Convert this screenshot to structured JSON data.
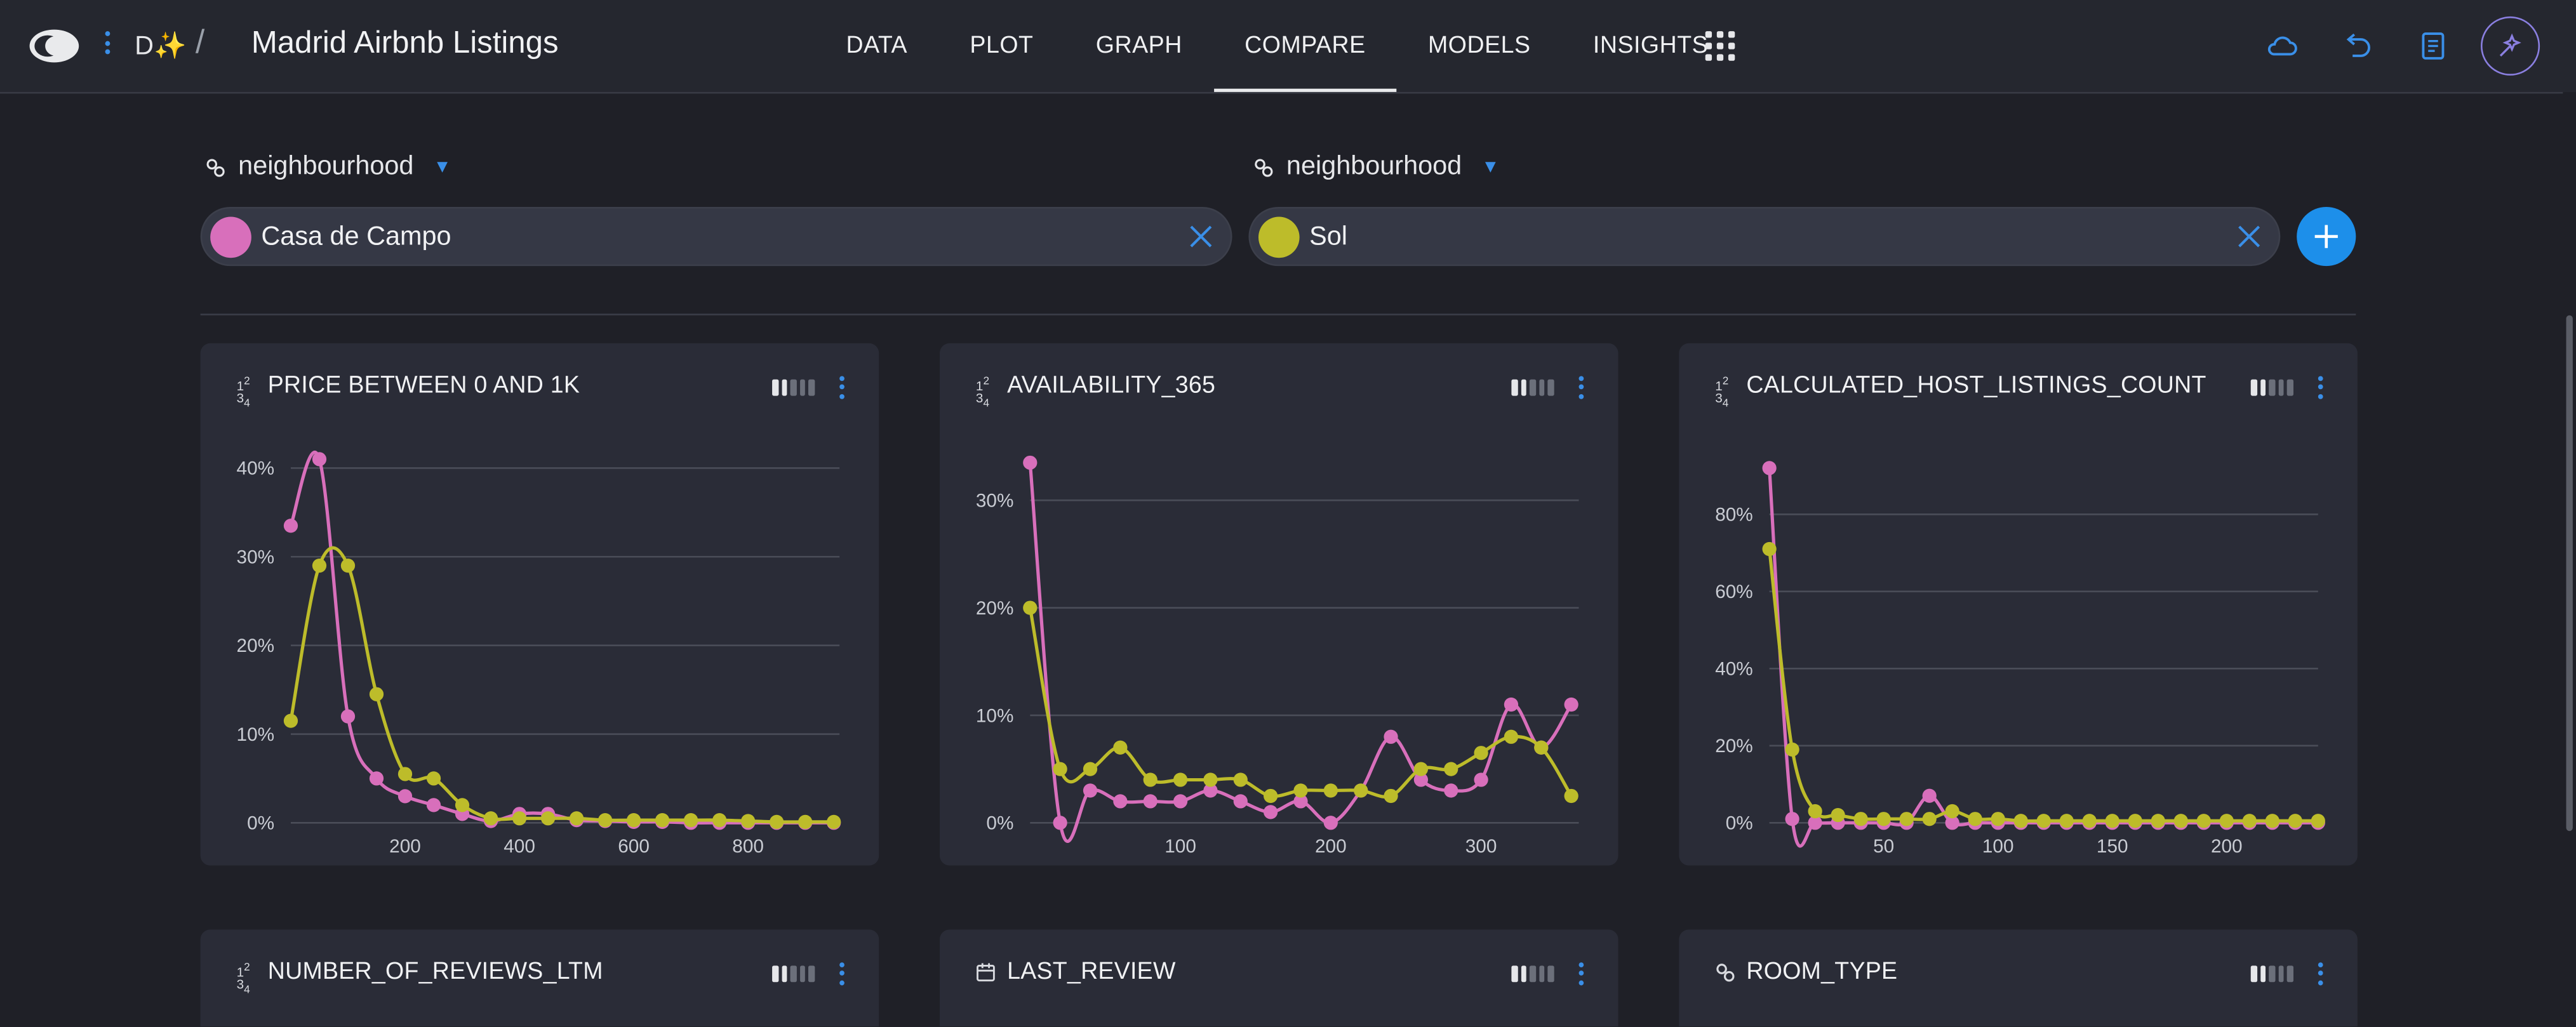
{
  "app": {
    "title": "Madrid Airbnb Listings",
    "dataset_icon": "D✨",
    "breadcrumb_separator": "/"
  },
  "nav": {
    "items": [
      "DATA",
      "PLOT",
      "GRAPH",
      "COMPARE",
      "MODELS",
      "INSIGHTS"
    ],
    "active": "COMPARE"
  },
  "toolbar": {
    "icons": [
      "cloud-icon",
      "undo-icon",
      "notebook-icon",
      "ai-assistant-icon"
    ]
  },
  "compare": {
    "left": {
      "field": "neighbourhood",
      "value": "Casa de Campo",
      "color": "#d86fbb"
    },
    "right": {
      "field": "neighbourhood",
      "value": "Sol",
      "color": "#bdbc2a"
    }
  },
  "colors": {
    "series_a": "#d86fbb",
    "series_b": "#bdbc2a",
    "accent": "#1d8fea"
  },
  "cards": [
    {
      "title": "PRICE BETWEEN 0 AND 1K",
      "type_icon": "numeric-icon",
      "chart_data": {
        "type": "line",
        "xlim": [
          0,
          960
        ],
        "ylim": [
          0,
          40
        ],
        "x_ticks": [
          200,
          400,
          600,
          800
        ],
        "x_tick_labels": [
          "200",
          "400",
          "600",
          "800"
        ],
        "y_ticks": [
          0,
          10,
          20,
          30,
          40
        ],
        "y_tick_labels": [
          "0%",
          "10%",
          "20%",
          "30%",
          "40%"
        ],
        "series": [
          {
            "name": "Casa de Campo",
            "color": "#d86fbb",
            "points": [
              [
                0,
                33.5
              ],
              [
                50,
                41
              ],
              [
                100,
                12
              ],
              [
                150,
                5
              ],
              [
                200,
                3
              ],
              [
                250,
                2
              ],
              [
                300,
                1
              ],
              [
                350,
                0.2
              ],
              [
                400,
                1
              ],
              [
                450,
                1
              ],
              [
                500,
                0.3
              ],
              [
                550,
                0.2
              ],
              [
                600,
                0.1
              ],
              [
                650,
                0.1
              ],
              [
                700,
                0
              ],
              [
                750,
                0
              ],
              [
                800,
                0
              ],
              [
                850,
                0
              ],
              [
                900,
                0
              ],
              [
                950,
                0
              ]
            ]
          },
          {
            "name": "Sol",
            "color": "#bdbc2a",
            "points": [
              [
                0,
                11.5
              ],
              [
                50,
                29
              ],
              [
                100,
                29
              ],
              [
                150,
                14.5
              ],
              [
                200,
                5.5
              ],
              [
                250,
                5
              ],
              [
                300,
                2
              ],
              [
                350,
                0.5
              ],
              [
                400,
                0.5
              ],
              [
                450,
                0.5
              ],
              [
                500,
                0.5
              ],
              [
                550,
                0.3
              ],
              [
                600,
                0.3
              ],
              [
                650,
                0.3
              ],
              [
                700,
                0.3
              ],
              [
                750,
                0.3
              ],
              [
                800,
                0.2
              ],
              [
                850,
                0.1
              ],
              [
                900,
                0.1
              ],
              [
                950,
                0.1
              ]
            ]
          }
        ]
      }
    },
    {
      "title": "AVAILABILITY_365",
      "type_icon": "numeric-icon",
      "chart_data": {
        "type": "line",
        "xlim": [
          0,
          365
        ],
        "ylim": [
          0,
          33
        ],
        "x_ticks": [
          100,
          200,
          300
        ],
        "x_tick_labels": [
          "100",
          "200",
          "300"
        ],
        "y_ticks": [
          0,
          10,
          20,
          30
        ],
        "y_tick_labels": [
          "0%",
          "10%",
          "20%",
          "30%"
        ],
        "series": [
          {
            "name": "Casa de Campo",
            "color": "#d86fbb",
            "points": [
              [
                0,
                33.5
              ],
              [
                20,
                0
              ],
              [
                40,
                3
              ],
              [
                60,
                2
              ],
              [
                80,
                2
              ],
              [
                100,
                2
              ],
              [
                120,
                3
              ],
              [
                140,
                2
              ],
              [
                160,
                1
              ],
              [
                180,
                2
              ],
              [
                200,
                0
              ],
              [
                220,
                3
              ],
              [
                240,
                8
              ],
              [
                260,
                4
              ],
              [
                280,
                3
              ],
              [
                300,
                4
              ],
              [
                320,
                11
              ],
              [
                340,
                7
              ],
              [
                360,
                11
              ]
            ]
          },
          {
            "name": "Sol",
            "color": "#bdbc2a",
            "points": [
              [
                0,
                20
              ],
              [
                20,
                5
              ],
              [
                40,
                5
              ],
              [
                60,
                7
              ],
              [
                80,
                4
              ],
              [
                100,
                4
              ],
              [
                120,
                4
              ],
              [
                140,
                4
              ],
              [
                160,
                2.5
              ],
              [
                180,
                3
              ],
              [
                200,
                3
              ],
              [
                220,
                3
              ],
              [
                240,
                2.5
              ],
              [
                260,
                5
              ],
              [
                280,
                5
              ],
              [
                300,
                6.5
              ],
              [
                320,
                8
              ],
              [
                340,
                7
              ],
              [
                360,
                2.5
              ]
            ]
          }
        ]
      }
    },
    {
      "title": "CALCULATED_HOST_LISTINGS_COUNT",
      "type_icon": "numeric-icon",
      "chart_data": {
        "type": "line",
        "xlim": [
          0,
          240
        ],
        "ylim": [
          0,
          92
        ],
        "x_ticks": [
          50,
          100,
          150,
          200
        ],
        "x_tick_labels": [
          "50",
          "100",
          "150",
          "200"
        ],
        "y_ticks": [
          0,
          20,
          40,
          60,
          80
        ],
        "y_tick_labels": [
          "0%",
          "20%",
          "40%",
          "60%",
          "80%"
        ],
        "series": [
          {
            "name": "Casa de Campo",
            "color": "#d86fbb",
            "points": [
              [
                0,
                92
              ],
              [
                10,
                1
              ],
              [
                20,
                0
              ],
              [
                30,
                0
              ],
              [
                40,
                0
              ],
              [
                50,
                0
              ],
              [
                60,
                0
              ],
              [
                70,
                7
              ],
              [
                80,
                0
              ],
              [
                90,
                0
              ],
              [
                100,
                0
              ],
              [
                110,
                0
              ],
              [
                120,
                0
              ],
              [
                130,
                0
              ],
              [
                140,
                0
              ],
              [
                150,
                0
              ],
              [
                160,
                0
              ],
              [
                170,
                0
              ],
              [
                180,
                0
              ],
              [
                190,
                0
              ],
              [
                200,
                0
              ],
              [
                210,
                0
              ],
              [
                220,
                0
              ],
              [
                230,
                0
              ],
              [
                240,
                0
              ]
            ]
          },
          {
            "name": "Sol",
            "color": "#bdbc2a",
            "points": [
              [
                0,
                71
              ],
              [
                10,
                19
              ],
              [
                20,
                3
              ],
              [
                30,
                2
              ],
              [
                40,
                1
              ],
              [
                50,
                1
              ],
              [
                60,
                1
              ],
              [
                70,
                1
              ],
              [
                80,
                3
              ],
              [
                90,
                1
              ],
              [
                100,
                1
              ],
              [
                110,
                0.5
              ],
              [
                120,
                0.5
              ],
              [
                130,
                0.5
              ],
              [
                140,
                0.5
              ],
              [
                150,
                0.5
              ],
              [
                160,
                0.5
              ],
              [
                170,
                0.5
              ],
              [
                180,
                0.5
              ],
              [
                190,
                0.5
              ],
              [
                200,
                0.5
              ],
              [
                210,
                0.5
              ],
              [
                220,
                0.5
              ],
              [
                230,
                0.5
              ],
              [
                240,
                0.5
              ]
            ]
          }
        ]
      }
    },
    {
      "title": "NUMBER_OF_REVIEWS_LTM",
      "type_icon": "numeric-icon"
    },
    {
      "title": "LAST_REVIEW",
      "type_icon": "calendar-icon"
    },
    {
      "title": "ROOM_TYPE",
      "type_icon": "categorical-icon"
    }
  ]
}
